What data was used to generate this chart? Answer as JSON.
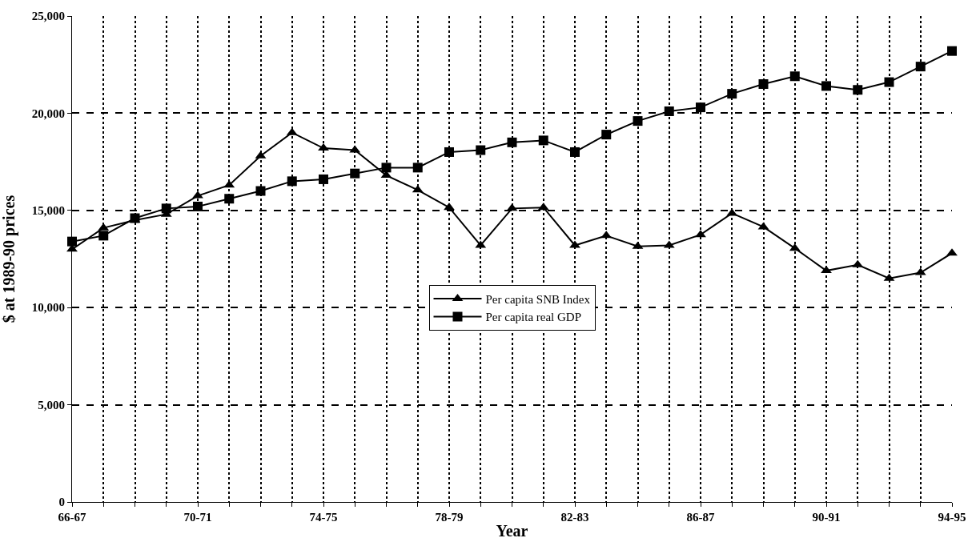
{
  "chart_data": {
    "type": "line",
    "xlabel": "Year",
    "ylabel": "$ at 1989-90 prices",
    "categories": [
      "66-67",
      null,
      null,
      null,
      "70-71",
      null,
      null,
      null,
      "74-75",
      null,
      null,
      null,
      "78-79",
      null,
      null,
      null,
      "82-83",
      null,
      null,
      null,
      "86-87",
      null,
      null,
      null,
      "90-91",
      null,
      null,
      null,
      "94-95"
    ],
    "series": [
      {
        "name": "Per capita SNB Index",
        "color": "#000000",
        "marker": "triangle",
        "values": [
          13000,
          14100,
          14500,
          14800,
          15750,
          16300,
          17800,
          19000,
          18200,
          18100,
          16800,
          16050,
          15150,
          13200,
          15100,
          15150,
          13200,
          13700,
          13150,
          13200,
          13750,
          14850,
          14150,
          13050,
          11900,
          12200,
          11500,
          11800,
          12800
        ]
      },
      {
        "name": "Per capita real GDP",
        "color": "#000000",
        "marker": "square",
        "values": [
          13400,
          13700,
          14600,
          15100,
          15200,
          15600,
          16000,
          16500,
          16600,
          16900,
          17200,
          17200,
          18000,
          18100,
          18500,
          18600,
          18000,
          18900,
          19600,
          20100,
          20300,
          21000,
          21500,
          21900,
          21400,
          21200,
          21600,
          22400,
          23200
        ]
      }
    ],
    "ylim": [
      0,
      25000
    ],
    "yticks": [
      0,
      {
        "value": 5000,
        "label": "5,000"
      },
      {
        "value": 10000,
        "label": "10,000"
      },
      {
        "value": 15000,
        "label": "15,000"
      },
      {
        "value": 20000,
        "label": "20,000"
      },
      {
        "value": 25000,
        "label": "25,000"
      }
    ],
    "grid": true,
    "legend": "center",
    "line_style": "solid"
  }
}
